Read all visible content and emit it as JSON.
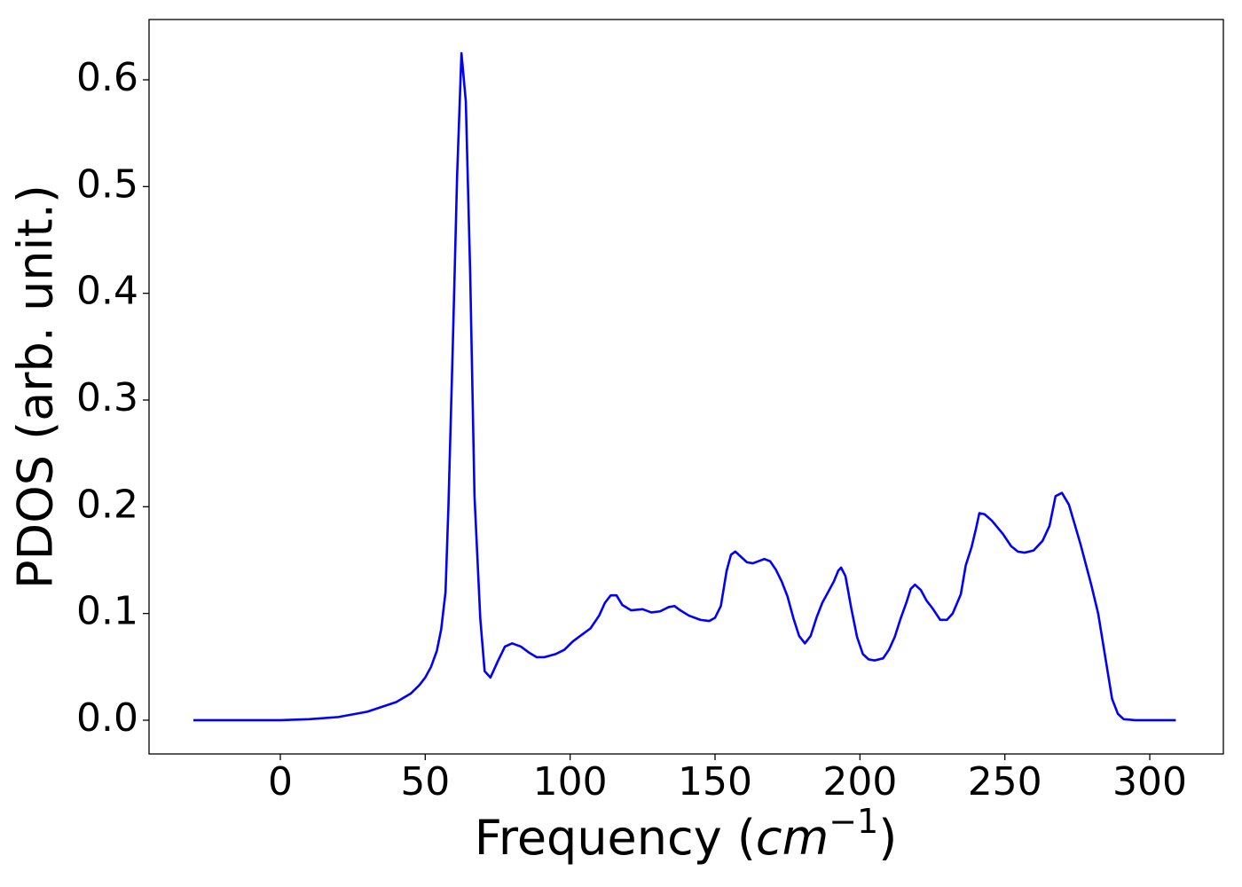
{
  "chart_data": {
    "type": "line",
    "ylabel": "PDOS (arb. unit.)",
    "xlabel": [
      "Frequency (",
      "cm",
      "−1",
      ")"
    ],
    "xlim": [
      -45.3,
      325.4
    ],
    "ylim": [
      -0.0316,
      0.6565
    ],
    "xticks": [
      0,
      50,
      100,
      150,
      200,
      250,
      300
    ],
    "yticks": [
      {
        "value": 0,
        "label": "0.0"
      },
      0.1,
      0.2,
      0.3,
      0.4,
      0.5,
      0.6
    ],
    "series": [
      {
        "color": "#0000ff",
        "x": [
          -30,
          0,
          10,
          20,
          30,
          40,
          45,
          48,
          50,
          52,
          54,
          55.5,
          57,
          58,
          59.5,
          61,
          62.5,
          64,
          65.5,
          67,
          69,
          70.5,
          72.5,
          75,
          77.5,
          80,
          83,
          86,
          88.5,
          91,
          95,
          98,
          101,
          104,
          107,
          110,
          112,
          114,
          116,
          118,
          121,
          125,
          128,
          131,
          134,
          136,
          138,
          141,
          145,
          148,
          150,
          152,
          154,
          155.5,
          157,
          159,
          161,
          163,
          165,
          167,
          169,
          171,
          173,
          175,
          177,
          179,
          181,
          183,
          185,
          187,
          190,
          191,
          192.5,
          193.5,
          195,
          197,
          199,
          201,
          203,
          205,
          208,
          210,
          212,
          214,
          216,
          217.5,
          219,
          221,
          223,
          225,
          227.7,
          230,
          232,
          234.8,
          236.5,
          238.5,
          240,
          241.2,
          243,
          245.5,
          249.2,
          252.2,
          254.5,
          256.8,
          259.9,
          263,
          265.4,
          267.5,
          269.7,
          272.1,
          276.1,
          279.8,
          282.2,
          284,
          285.5,
          287,
          289,
          291,
          295,
          309
        ],
        "values": [
          0,
          0,
          0.001,
          0.003,
          0.008,
          0.017,
          0.025,
          0.033,
          0.04,
          0.05,
          0.065,
          0.085,
          0.12,
          0.2,
          0.35,
          0.51,
          0.625,
          0.58,
          0.42,
          0.21,
          0.095,
          0.046,
          0.04,
          0.055,
          0.069,
          0.072,
          0.069,
          0.063,
          0.059,
          0.059,
          0.062,
          0.066,
          0.074,
          0.08,
          0.086,
          0.098,
          0.11,
          0.117,
          0.117,
          0.108,
          0.103,
          0.104,
          0.101,
          0.102,
          0.106,
          0.107,
          0.103,
          0.098,
          0.094,
          0.093,
          0.096,
          0.107,
          0.14,
          0.155,
          0.158,
          0.153,
          0.148,
          0.147,
          0.149,
          0.151,
          0.149,
          0.141,
          0.13,
          0.116,
          0.096,
          0.079,
          0.072,
          0.079,
          0.096,
          0.11,
          0.125,
          0.13,
          0.14,
          0.143,
          0.135,
          0.105,
          0.078,
          0.062,
          0.057,
          0.056,
          0.058,
          0.066,
          0.078,
          0.095,
          0.11,
          0.123,
          0.127,
          0.122,
          0.112,
          0.105,
          0.094,
          0.094,
          0.1,
          0.118,
          0.145,
          0.162,
          0.179,
          0.194,
          0.193,
          0.187,
          0.175,
          0.163,
          0.158,
          0.157,
          0.159,
          0.168,
          0.182,
          0.21,
          0.213,
          0.202,
          0.165,
          0.127,
          0.1,
          0.07,
          0.045,
          0.02,
          0.006,
          0.001,
          0,
          0
        ]
      }
    ]
  }
}
